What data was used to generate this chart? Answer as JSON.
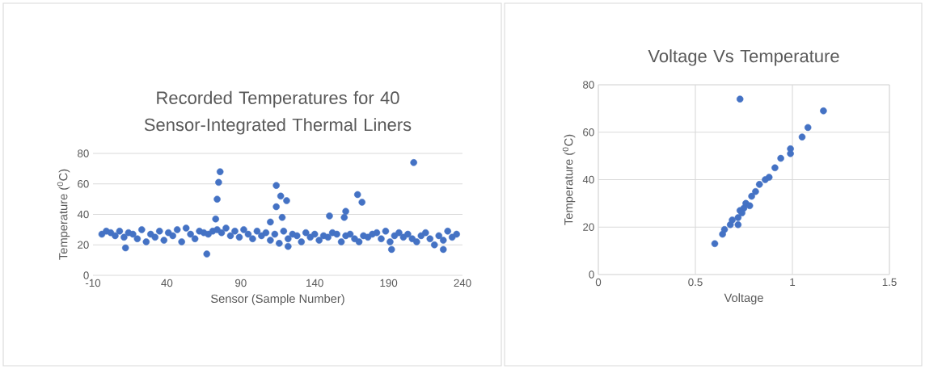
{
  "chart_data": [
    {
      "type": "scatter",
      "title": "Recorded Temperatures for 40 Sensor-Integrated Thermal Liners",
      "xlabel": "Sensor (Sample Number)",
      "ylabel": "Temperature ($^{0}$C)",
      "color": "#4472c4",
      "marker": "circle",
      "grid": "y",
      "xlim": [
        -10,
        240
      ],
      "xticks": [
        -10,
        40,
        90,
        140,
        190,
        240
      ],
      "ylim": [
        0,
        80
      ],
      "yticks": [
        0,
        20,
        40,
        60,
        80
      ],
      "x": [
        -4,
        -1,
        2,
        5,
        8,
        11,
        14,
        17,
        20,
        23,
        26,
        29,
        32,
        35,
        38,
        41,
        44,
        47,
        50,
        53,
        56,
        59,
        62,
        65,
        68,
        71,
        74,
        77,
        80,
        83,
        86,
        89,
        92,
        95,
        98,
        101,
        104,
        107,
        110,
        113,
        116,
        119,
        122,
        125,
        128,
        131,
        134,
        137,
        140,
        143,
        146,
        149,
        152,
        155,
        158,
        161,
        164,
        167,
        170,
        173,
        176,
        179,
        182,
        185,
        188,
        191,
        194,
        197,
        200,
        203,
        206,
        209,
        212,
        215,
        218,
        221,
        224,
        227,
        230,
        233,
        236,
        12,
        67,
        73,
        74,
        75,
        76,
        110,
        114,
        114,
        117,
        118,
        121,
        122,
        150,
        160,
        161,
        169,
        172,
        192,
        207,
        227
      ],
      "values": [
        27,
        29,
        28,
        26,
        29,
        25,
        28,
        27,
        24,
        30,
        22,
        27,
        25,
        29,
        23,
        28,
        26,
        30,
        22,
        31,
        27,
        24,
        29,
        28,
        27,
        29,
        30,
        28,
        31,
        26,
        29,
        25,
        30,
        27,
        24,
        29,
        26,
        28,
        23,
        27,
        21,
        29,
        24,
        27,
        26,
        22,
        28,
        25,
        27,
        23,
        26,
        25,
        28,
        27,
        22,
        26,
        27,
        24,
        22,
        26,
        25,
        27,
        28,
        24,
        29,
        22,
        26,
        28,
        25,
        27,
        24,
        22,
        26,
        28,
        24,
        20,
        26,
        23,
        29,
        25,
        27,
        18,
        14,
        37,
        50,
        61,
        68,
        35,
        59,
        45,
        52,
        38,
        49,
        19,
        39,
        38,
        42,
        53,
        48,
        17,
        74,
        17
      ]
    },
    {
      "type": "scatter",
      "title": "Voltage Vs Temperature",
      "xlabel": "Voltage",
      "ylabel": "Temperature ($^{0}$C)",
      "color": "#4472c4",
      "marker": "circle",
      "grid": true,
      "xlim": [
        0,
        1.5
      ],
      "xticks": [
        0,
        0.5,
        1,
        1.5
      ],
      "ylim": [
        0,
        80
      ],
      "yticks": [
        0,
        20,
        40,
        60,
        80
      ],
      "x": [
        0.73,
        1.16,
        1.08,
        1.05,
        0.99,
        0.99,
        0.94,
        0.91,
        0.6,
        0.88,
        0.64,
        0.72,
        0.72,
        0.75,
        0.79,
        0.69,
        0.73,
        0.76,
        0.78,
        0.65,
        0.68,
        0.74,
        0.81,
        0.86,
        0.83
      ],
      "values": [
        74,
        69,
        62,
        58,
        53,
        51,
        49,
        45,
        13,
        41,
        17,
        21,
        24,
        28,
        33,
        23,
        27,
        30,
        29,
        19,
        21,
        26,
        35,
        40,
        38
      ]
    }
  ]
}
